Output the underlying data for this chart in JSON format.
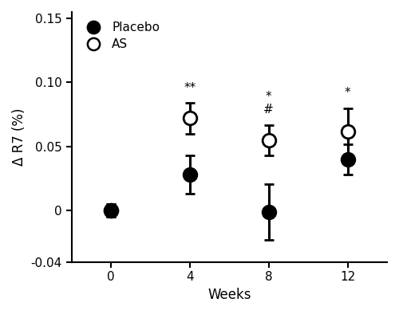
{
  "weeks": [
    0,
    4,
    8,
    12
  ],
  "x_positions": [
    0,
    1,
    2,
    3
  ],
  "placebo_mean": [
    0.0,
    0.028,
    -0.001,
    0.04
  ],
  "placebo_err": [
    0.005,
    0.015,
    0.022,
    0.012
  ],
  "as_mean": [
    0.0,
    0.072,
    0.055,
    0.062
  ],
  "as_err": [
    0.005,
    0.012,
    0.012,
    0.018
  ],
  "placebo_color": "#000000",
  "as_color": "#ffffff",
  "marker_size": 12,
  "linewidth": 2.2,
  "ylabel": "Δ R7 (%)",
  "xlabel": "Weeks",
  "ylim": [
    -0.04,
    0.155
  ],
  "ytick_vals": [
    -0.04,
    0.0,
    0.05,
    0.1,
    0.15
  ],
  "ytick_labels": [
    "-0.04",
    "0",
    "0.05",
    "0.10",
    "0.15"
  ],
  "xtick_labels": [
    "0",
    "4",
    "8",
    "12"
  ],
  "annot_week4_as": "**",
  "annot_week8_top": "#",
  "annot_week8_bot": "*",
  "annot_week12": "*",
  "legend_placebo": "Placebo",
  "legend_as": "AS",
  "background_color": "#ffffff",
  "edgecolor": "#000000",
  "capsize": 4,
  "capthick": 1.5,
  "fontsize_annot": 11,
  "fontsize_tick": 11,
  "fontsize_label": 12,
  "fontsize_legend": 11
}
